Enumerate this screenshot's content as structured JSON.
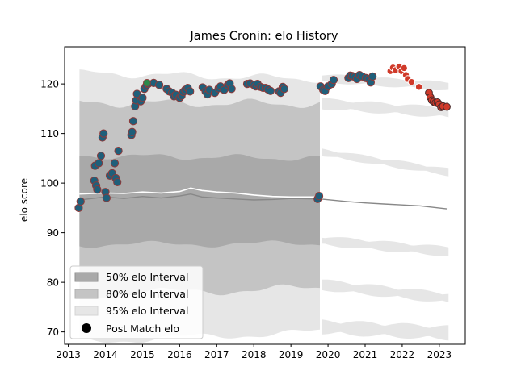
{
  "chart_data": {
    "type": "scatter",
    "title": "James Cronin: elo History",
    "xlabel": "",
    "ylabel": "elo score",
    "xlim": [
      2012.9,
      2023.7
    ],
    "ylim": [
      67.5,
      127.5
    ],
    "x_ticks": [
      "2013",
      "2014",
      "2015",
      "2016",
      "2017",
      "2018",
      "2019",
      "2020",
      "2021",
      "2022",
      "2023"
    ],
    "y_ticks": [
      "70",
      "80",
      "90",
      "100",
      "110",
      "120"
    ],
    "legend_position": "lower-left",
    "legend": {
      "int50": "50% elo Interval",
      "int80": "80% elo Interval",
      "int95": "95% elo Interval",
      "post": "Post Match elo"
    },
    "colors": {
      "band50": "#a9a9a9",
      "band80": "#c4c4c4",
      "band95": "#e6e6e6",
      "point_fill_teal": "#1f5f7a",
      "point_edge_red": "#8c3a3a",
      "point_fill_red": "#d03a2a",
      "point_green": "#2a8a4a",
      "median_line": "#888888",
      "white_line": "#ffffff"
    },
    "interval_start": 2013.3,
    "interval_end": 2019.78,
    "bands_left": {
      "p95_upper": 122.2,
      "p80_upper": 116.2,
      "p50_upper": 105.5,
      "p50_lower": 87.6,
      "p80_lower": 77.6,
      "p95_lower": 68.0
    },
    "bands_left_right_edge": {
      "p95_upper": 121.0,
      "p80_upper": 116.0,
      "p50_upper": 105.0,
      "p50_lower": 87.8,
      "p80_lower": 78.8,
      "p95_lower": 70.0
    },
    "median_line": [
      [
        2013.3,
        96.6
      ],
      [
        2014.0,
        97.2
      ],
      [
        2014.5,
        96.9
      ],
      [
        2015.0,
        97.3
      ],
      [
        2015.5,
        97.0
      ],
      [
        2016.0,
        97.4
      ],
      [
        2016.3,
        97.8
      ],
      [
        2016.6,
        97.2
      ],
      [
        2017.0,
        97.0
      ],
      [
        2017.5,
        96.8
      ],
      [
        2018.0,
        96.6
      ],
      [
        2018.5,
        96.7
      ],
      [
        2019.0,
        96.9
      ],
      [
        2019.8,
        96.8
      ],
      [
        2020.5,
        96.3
      ],
      [
        2021.0,
        96.0
      ],
      [
        2021.5,
        95.8
      ],
      [
        2022.0,
        95.6
      ],
      [
        2022.5,
        95.4
      ],
      [
        2023.2,
        94.8
      ]
    ],
    "white_line": [
      [
        2013.3,
        97.8
      ],
      [
        2014.0,
        98.0
      ],
      [
        2014.5,
        97.9
      ],
      [
        2015.0,
        98.2
      ],
      [
        2015.5,
        98.0
      ],
      [
        2016.0,
        98.3
      ],
      [
        2016.3,
        99.0
      ],
      [
        2016.6,
        98.5
      ],
      [
        2017.0,
        98.2
      ],
      [
        2017.5,
        98.0
      ],
      [
        2018.0,
        97.6
      ],
      [
        2018.5,
        97.3
      ],
      [
        2019.0,
        97.2
      ],
      [
        2019.8,
        97.2
      ]
    ],
    "points_teal": [
      [
        2013.28,
        95.0
      ],
      [
        2013.33,
        96.3
      ],
      [
        2013.7,
        100.5
      ],
      [
        2013.72,
        103.5
      ],
      [
        2013.75,
        99.5
      ],
      [
        2013.78,
        98.7
      ],
      [
        2013.82,
        104.0
      ],
      [
        2013.88,
        105.5
      ],
      [
        2013.92,
        109.2
      ],
      [
        2013.95,
        110.0
      ],
      [
        2014.0,
        98.2
      ],
      [
        2014.03,
        97.0
      ],
      [
        2014.12,
        101.5
      ],
      [
        2014.18,
        102.0
      ],
      [
        2014.25,
        104.0
      ],
      [
        2014.28,
        101.0
      ],
      [
        2014.32,
        100.2
      ],
      [
        2014.35,
        106.5
      ],
      [
        2014.7,
        109.7
      ],
      [
        2014.72,
        110.3
      ],
      [
        2014.75,
        112.5
      ],
      [
        2014.8,
        115.5
      ],
      [
        2014.83,
        116.7
      ],
      [
        2014.85,
        118.0
      ],
      [
        2014.95,
        116.5
      ],
      [
        2015.0,
        117.2
      ],
      [
        2015.05,
        119.0
      ],
      [
        2015.1,
        119.6
      ],
      [
        2015.15,
        120.0
      ],
      [
        2015.3,
        120.2
      ],
      [
        2015.45,
        119.8
      ],
      [
        2015.65,
        119.0
      ],
      [
        2015.72,
        118.5
      ],
      [
        2015.8,
        118.2
      ],
      [
        2015.85,
        117.5
      ],
      [
        2015.9,
        117.8
      ],
      [
        2016.0,
        117.2
      ],
      [
        2016.05,
        117.6
      ],
      [
        2016.1,
        118.4
      ],
      [
        2016.15,
        118.8
      ],
      [
        2016.22,
        119.2
      ],
      [
        2016.28,
        118.5
      ],
      [
        2016.62,
        119.3
      ],
      [
        2016.7,
        118.5
      ],
      [
        2016.75,
        117.9
      ],
      [
        2016.8,
        118.8
      ],
      [
        2016.95,
        118.2
      ],
      [
        2017.05,
        119.1
      ],
      [
        2017.1,
        119.5
      ],
      [
        2017.2,
        118.8
      ],
      [
        2017.3,
        119.8
      ],
      [
        2017.35,
        120.1
      ],
      [
        2017.4,
        119.0
      ],
      [
        2017.82,
        120.0
      ],
      [
        2017.9,
        120.1
      ],
      [
        2018.0,
        119.8
      ],
      [
        2018.05,
        119.5
      ],
      [
        2018.1,
        120.0
      ],
      [
        2018.18,
        119.4
      ],
      [
        2018.25,
        119.2
      ],
      [
        2018.32,
        119.2
      ],
      [
        2018.38,
        118.9
      ],
      [
        2018.45,
        118.6
      ],
      [
        2018.68,
        118.5
      ],
      [
        2018.72,
        118.2
      ],
      [
        2018.78,
        119.4
      ],
      [
        2018.82,
        119.0
      ],
      [
        2019.72,
        96.8
      ],
      [
        2019.76,
        97.4
      ],
      [
        2019.8,
        119.5
      ],
      [
        2019.87,
        118.8
      ],
      [
        2019.92,
        118.6
      ],
      [
        2020.0,
        119.5
      ],
      [
        2020.1,
        120.0
      ],
      [
        2020.15,
        120.8
      ],
      [
        2020.55,
        121.2
      ],
      [
        2020.6,
        121.7
      ],
      [
        2020.65,
        121.6
      ],
      [
        2020.72,
        121.4
      ],
      [
        2020.78,
        121.0
      ],
      [
        2020.85,
        121.8
      ],
      [
        2020.92,
        121.5
      ],
      [
        2021.02,
        121.2
      ],
      [
        2021.1,
        121.0
      ],
      [
        2021.15,
        120.3
      ],
      [
        2021.2,
        121.5
      ]
    ],
    "points_red": [
      [
        2021.68,
        122.6
      ],
      [
        2021.75,
        123.3
      ],
      [
        2021.82,
        122.8
      ],
      [
        2021.92,
        123.5
      ],
      [
        2021.98,
        122.6
      ],
      [
        2022.05,
        123.2
      ],
      [
        2022.1,
        121.8
      ],
      [
        2022.15,
        121.0
      ],
      [
        2022.25,
        120.4
      ],
      [
        2022.45,
        119.4
      ]
    ],
    "points_red_dark": [
      [
        2022.72,
        118.2
      ],
      [
        2022.76,
        117.3
      ],
      [
        2022.8,
        116.7
      ],
      [
        2022.85,
        116.4
      ],
      [
        2022.9,
        116.2
      ],
      [
        2022.95,
        116.3
      ],
      [
        2023.0,
        115.9
      ],
      [
        2023.05,
        115.3
      ],
      [
        2023.1,
        115.5
      ],
      [
        2023.2,
        115.4
      ]
    ],
    "points_green": [
      [
        2015.12,
        120.2
      ]
    ]
  }
}
